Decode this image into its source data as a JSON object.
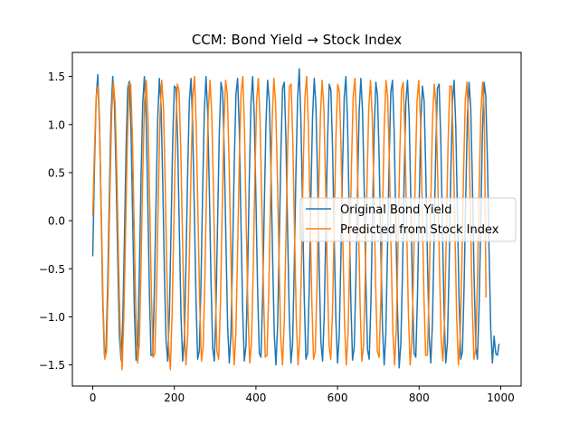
{
  "chart_data": {
    "type": "line",
    "title": "CCM: Bond Yield → Stock Index",
    "xlabel": "",
    "ylabel": "",
    "xlim": [
      -50,
      1050
    ],
    "ylim": [
      -1.72,
      1.75
    ],
    "xticks": [
      0,
      200,
      400,
      600,
      800,
      1000
    ],
    "xtick_labels": [
      "0",
      "200",
      "400",
      "600",
      "800",
      "1000"
    ],
    "yticks": [
      -1.5,
      -1.0,
      -0.5,
      0.0,
      0.5,
      1.0,
      1.5
    ],
    "ytick_labels": [
      "−1.5",
      "−1.0",
      "−0.5",
      "0.0",
      "0.5",
      "1.0",
      "1.5"
    ],
    "grid": false,
    "legend_placement": "center-right",
    "sampling": {
      "x_start": 0,
      "x_step": 4
    },
    "series": [
      {
        "name": "Original Bond Yield",
        "color": "#1f77b4",
        "x_range": [
          0,
          996
        ],
        "values": [
          -0.37,
          0.55,
          1.25,
          1.52,
          1.05,
          0.12,
          -0.84,
          -1.4,
          -1.32,
          -0.63,
          0.3,
          1.12,
          1.5,
          1.22,
          0.5,
          -0.4,
          -1.2,
          -1.45,
          -1.05,
          -0.2,
          0.75,
          1.38,
          1.45,
          0.92,
          -0.02,
          -0.95,
          -1.45,
          -1.3,
          -0.5,
          0.45,
          1.22,
          1.5,
          1.1,
          0.25,
          -0.75,
          -1.4,
          -1.4,
          -0.72,
          0.2,
          1.06,
          1.48,
          1.2,
          0.42,
          -0.52,
          -1.24,
          -1.46,
          -0.98,
          -0.1,
          0.82,
          1.4,
          1.38,
          0.8,
          -0.12,
          -1.0,
          -1.46,
          -1.24,
          -0.42,
          0.52,
          1.25,
          1.48,
          1.0,
          0.1,
          -0.82,
          -1.44,
          -1.35,
          -0.64,
          0.32,
          1.14,
          1.5,
          1.12,
          0.32,
          -0.62,
          -1.32,
          -1.46,
          -0.92,
          0.02,
          0.92,
          1.44,
          1.34,
          0.68,
          -0.24,
          -1.1,
          -1.48,
          -1.18,
          -0.32,
          0.62,
          1.32,
          1.48,
          0.95,
          -0.02,
          -0.92,
          -1.46,
          -1.3,
          -0.55,
          0.42,
          1.22,
          1.5,
          1.08,
          0.22,
          -0.72,
          -1.38,
          -1.42,
          -0.8,
          0.14,
          1.0,
          1.46,
          1.25,
          0.55,
          -0.38,
          -1.18,
          -1.5,
          -1.1,
          -0.22,
          0.72,
          1.38,
          1.44,
          0.85,
          -0.1,
          -0.98,
          -1.48,
          -1.28,
          -0.48,
          0.5,
          1.26,
          1.58,
          1.05,
          0.12,
          -0.8,
          -1.44,
          -1.38,
          -0.7,
          0.26,
          1.08,
          1.48,
          1.2,
          0.42,
          -0.52,
          -1.26,
          -1.46,
          -0.98,
          -0.08,
          0.85,
          1.42,
          1.36,
          0.76,
          -0.18,
          -1.04,
          -1.48,
          -1.2,
          -0.4,
          0.55,
          1.28,
          1.5,
          1.02,
          0.08,
          -0.85,
          -1.45,
          -1.32,
          -0.62,
          0.34,
          1.14,
          1.48,
          1.14,
          0.34,
          -0.62,
          -1.34,
          -1.44,
          -0.88,
          0.04,
          0.94,
          1.44,
          1.3,
          0.64,
          -0.3,
          -1.12,
          -1.5,
          -1.16,
          -0.3,
          0.64,
          1.34,
          1.46,
          0.92,
          -0.02,
          -0.92,
          -1.53,
          -1.28,
          -0.55,
          0.44,
          1.22,
          1.46,
          1.08,
          0.22,
          -0.74,
          -1.38,
          -1.42,
          -0.78,
          0.16,
          1.02,
          1.4,
          1.24,
          0.5,
          -0.42,
          -1.2,
          -1.48,
          -1.06,
          -0.16,
          0.76,
          1.38,
          1.42,
          0.84,
          -0.08,
          -0.98,
          -1.48,
          -1.26,
          -0.48,
          0.48,
          1.24,
          1.46,
          0.98,
          0.08,
          -0.84,
          -1.44,
          -1.36,
          -0.68,
          0.26,
          1.1,
          1.44,
          1.16,
          0.38,
          -0.58,
          -1.3,
          -1.44,
          -0.9,
          -0.02,
          0.9,
          1.44,
          1.3,
          0.62,
          -0.32,
          -1.12,
          -1.48,
          -1.2,
          -1.38,
          -1.4,
          -1.28
        ]
      },
      {
        "name": "Predicted from Stock Index",
        "color": "#ff7f0e",
        "x_range": [
          0,
          964
        ],
        "values": [
          0.05,
          0.75,
          1.3,
          1.4,
          0.92,
          0.05,
          -0.88,
          -1.44,
          -1.36,
          -0.6,
          0.34,
          1.14,
          1.44,
          1.2,
          0.46,
          -0.46,
          -1.24,
          -1.55,
          -1.02,
          -0.14,
          0.8,
          1.42,
          1.42,
          0.88,
          -0.06,
          -0.98,
          -1.48,
          -1.28,
          -0.46,
          0.5,
          1.24,
          1.46,
          1.06,
          0.2,
          -0.78,
          -1.42,
          -1.38,
          -0.7,
          0.24,
          1.1,
          1.46,
          1.18,
          0.38,
          -0.56,
          -1.3,
          -1.55,
          -0.96,
          -0.06,
          0.86,
          1.42,
          1.36,
          0.76,
          -0.16,
          -1.04,
          -1.5,
          -1.22,
          -0.38,
          0.56,
          1.28,
          1.5,
          0.98,
          0.06,
          -0.86,
          -1.46,
          -1.32,
          -0.6,
          0.36,
          1.16,
          1.46,
          1.1,
          0.28,
          -0.66,
          -1.36,
          -1.44,
          -0.88,
          0.06,
          0.96,
          1.46,
          1.32,
          0.64,
          -0.28,
          -1.14,
          -1.5,
          -1.16,
          -0.28,
          0.66,
          1.34,
          1.5,
          0.92,
          -0.06,
          -0.96,
          -1.48,
          -1.28,
          -0.52,
          0.46,
          1.24,
          1.48,
          1.04,
          0.18,
          -0.76,
          -1.42,
          -1.4,
          -0.76,
          0.18,
          1.04,
          1.48,
          1.22,
          0.5,
          -0.42,
          -1.22,
          -1.5,
          -1.06,
          -0.18,
          0.76,
          1.4,
          1.42,
          0.82,
          -0.14,
          -1.02,
          -1.5,
          -1.24,
          -0.44,
          0.54,
          1.28,
          1.5,
          1.0,
          0.08,
          -0.84,
          -1.44,
          -1.36,
          -0.66,
          0.3,
          1.1,
          1.46,
          1.16,
          0.38,
          -0.56,
          -1.3,
          -1.44,
          -0.94,
          -0.04,
          0.88,
          1.42,
          1.34,
          0.72,
          -0.22,
          -1.08,
          -1.5,
          -1.18,
          -0.36,
          0.58,
          1.3,
          1.48,
          0.98,
          0.04,
          -0.88,
          -1.46,
          -1.3,
          -0.58,
          0.38,
          1.16,
          1.46,
          1.1,
          0.3,
          -0.66,
          -1.36,
          -1.42,
          -0.84,
          0.08,
          0.98,
          1.46,
          1.28,
          0.6,
          -0.34,
          -1.16,
          -1.5,
          -1.12,
          -0.26,
          0.68,
          1.36,
          1.44,
          0.88,
          -0.06,
          -0.96,
          -1.5,
          -1.26,
          -0.5,
          0.48,
          1.24,
          1.46,
          1.04,
          0.18,
          -0.78,
          -1.4,
          -1.4,
          -0.74,
          0.2,
          1.06,
          1.42,
          1.2,
          0.46,
          -0.46,
          -1.24,
          -1.46,
          -1.02,
          -0.12,
          0.8,
          1.4,
          1.4,
          0.8,
          -0.12,
          -1.02,
          -1.5,
          -1.22,
          -0.44,
          0.52,
          1.26,
          1.44,
          0.94,
          0.04,
          -0.88,
          -1.44,
          -1.34,
          -0.64,
          0.3,
          1.12,
          1.44,
          1.12,
          -0.8
        ]
      }
    ]
  }
}
